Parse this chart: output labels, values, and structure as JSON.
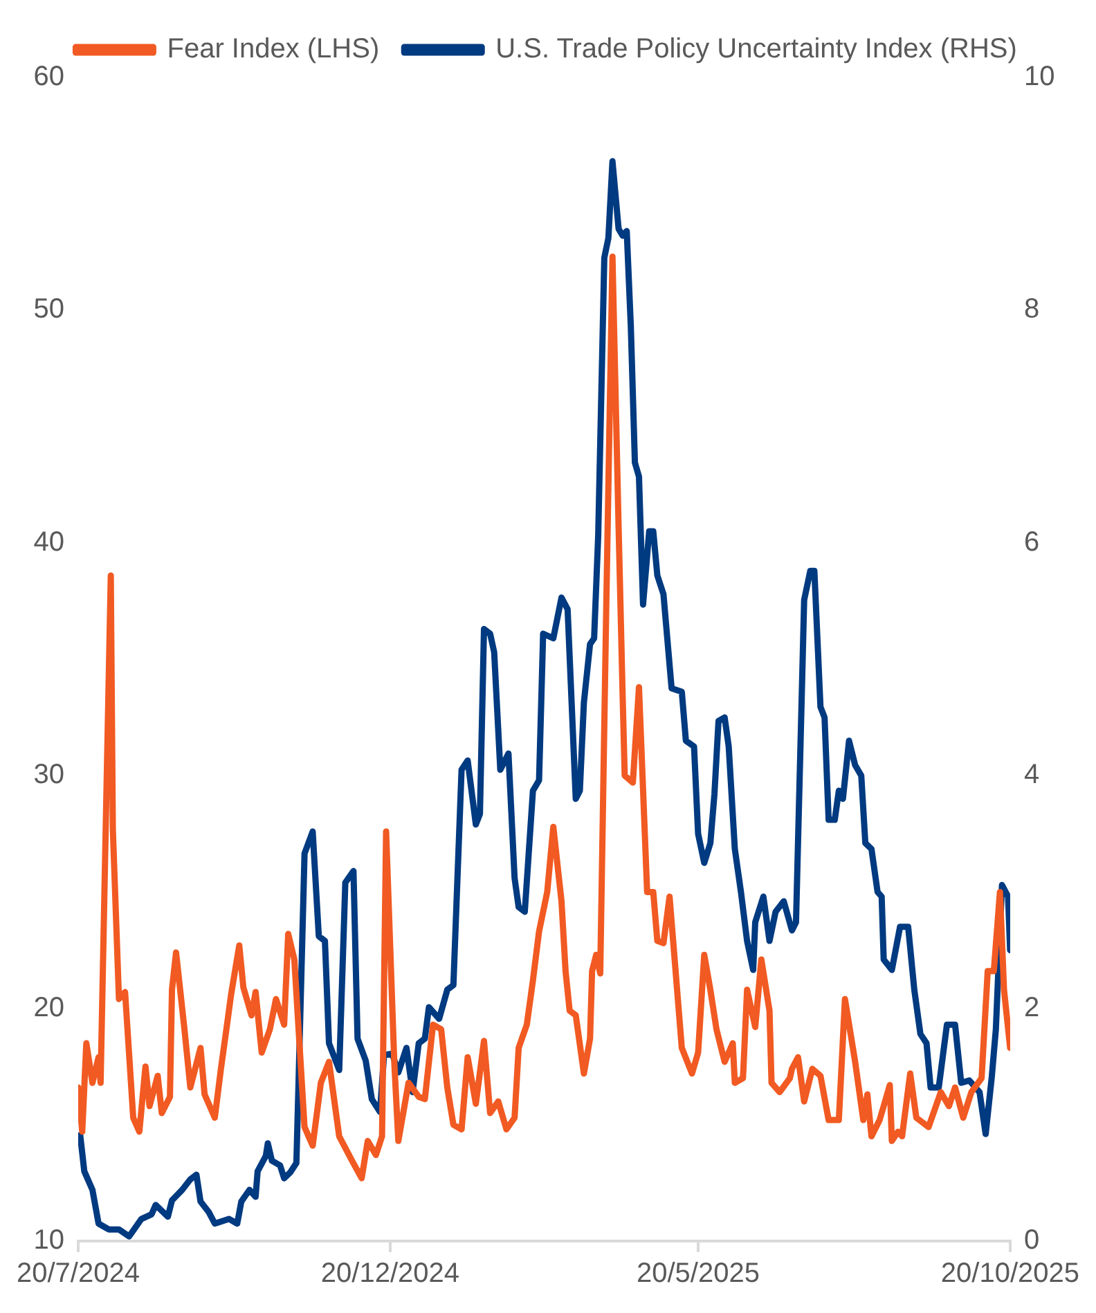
{
  "chart_data": {
    "type": "line",
    "legend": "top",
    "grid": false,
    "xlim": [
      "2024-07-20",
      "2025-10-20"
    ],
    "xticks": [
      {
        "value": "2024-07-20",
        "label": "20/7/2024"
      },
      {
        "value": "2024-12-20",
        "label": "20/12/2024"
      },
      {
        "value": "2025-05-20",
        "label": "20/5/2025"
      },
      {
        "value": "2025-10-20",
        "label": "20/10/2025"
      }
    ],
    "ylim": [
      10,
      60
    ],
    "yticks": [
      10,
      20,
      30,
      40,
      50,
      60
    ],
    "y2lim": [
      0,
      10
    ],
    "y2ticks": [
      0,
      2,
      4,
      6,
      8,
      10
    ],
    "series": [
      {
        "name": "Fear Index (LHS)",
        "color": "#f15a22",
        "axis": "y",
        "x": [
          "2024-07-20",
          "2024-07-22",
          "2024-07-24",
          "2024-07-27",
          "2024-07-30",
          "2024-07-31",
          "2024-08-05",
          "2024-08-06",
          "2024-08-09",
          "2024-08-12",
          "2024-08-16",
          "2024-08-19",
          "2024-08-22",
          "2024-08-24",
          "2024-08-28",
          "2024-08-30",
          "2024-09-03",
          "2024-09-04",
          "2024-09-06",
          "2024-09-10",
          "2024-09-13",
          "2024-09-18",
          "2024-09-20",
          "2024-09-25",
          "2024-09-28",
          "2024-10-01",
          "2024-10-03",
          "2024-10-07",
          "2024-10-09",
          "2024-10-13",
          "2024-10-15",
          "2024-10-18",
          "2024-10-22",
          "2024-10-25",
          "2024-10-29",
          "2024-10-31",
          "2024-11-03",
          "2024-11-08",
          "2024-11-12",
          "2024-11-16",
          "2024-11-20",
          "2024-11-25",
          "2024-12-01",
          "2024-12-06",
          "2024-12-09",
          "2024-12-13",
          "2024-12-16",
          "2024-12-18",
          "2024-12-22",
          "2024-12-24",
          "2024-12-29",
          "2025-01-03",
          "2025-01-06",
          "2025-01-10",
          "2025-01-14",
          "2025-01-17",
          "2025-01-20",
          "2025-01-24",
          "2025-01-27",
          "2025-01-31",
          "2025-02-04",
          "2025-02-07",
          "2025-02-11",
          "2025-02-15",
          "2025-02-19",
          "2025-02-21",
          "2025-02-25",
          "2025-02-28",
          "2025-03-03",
          "2025-03-07",
          "2025-03-10",
          "2025-03-14",
          "2025-03-16",
          "2025-03-18",
          "2025-03-21",
          "2025-03-25",
          "2025-03-28",
          "2025-03-29",
          "2025-03-31",
          "2025-04-02",
          "2025-04-05",
          "2025-04-08",
          "2025-04-11",
          "2025-04-13",
          "2025-04-14",
          "2025-04-18",
          "2025-04-21",
          "2025-04-25",
          "2025-04-28",
          "2025-04-30",
          "2025-05-03",
          "2025-05-06",
          "2025-05-12",
          "2025-05-17",
          "2025-05-20",
          "2025-05-23",
          "2025-05-26",
          "2025-05-29",
          "2025-06-02",
          "2025-06-06",
          "2025-06-07",
          "2025-06-11",
          "2025-06-13",
          "2025-06-17",
          "2025-06-20",
          "2025-06-24",
          "2025-06-25",
          "2025-06-29",
          "2025-07-04",
          "2025-07-05",
          "2025-07-08",
          "2025-07-11",
          "2025-07-15",
          "2025-07-19",
          "2025-07-23",
          "2025-07-28",
          "2025-07-31",
          "2025-08-05",
          "2025-08-09",
          "2025-08-11",
          "2025-08-13",
          "2025-08-17",
          "2025-08-22",
          "2025-08-23",
          "2025-08-26",
          "2025-08-28",
          "2025-09-01",
          "2025-09-04",
          "2025-09-10",
          "2025-09-16",
          "2025-09-20",
          "2025-09-23",
          "2025-09-27",
          "2025-10-01",
          "2025-10-06",
          "2025-10-09",
          "2025-10-12",
          "2025-10-15",
          "2025-10-17",
          "2025-10-20"
        ],
        "values": [
          16.6,
          14.7,
          18.5,
          16.8,
          17.9,
          16.8,
          38.6,
          27.7,
          20.4,
          20.7,
          15.3,
          14.7,
          17.5,
          15.8,
          17.1,
          15.5,
          16.2,
          20.8,
          22.4,
          19.2,
          16.6,
          18.3,
          16.3,
          15.3,
          17.4,
          19.3,
          20.6,
          22.7,
          20.9,
          19.7,
          20.7,
          18.1,
          19.1,
          20.4,
          19.3,
          23.2,
          22.1,
          14.9,
          14.1,
          16.8,
          17.7,
          14.5,
          13.5,
          12.7,
          14.3,
          13.7,
          14.5,
          27.6,
          17.7,
          14.3,
          16.8,
          16.2,
          16.1,
          19.3,
          19.1,
          16.6,
          15.0,
          14.8,
          17.9,
          15.9,
          18.6,
          15.5,
          16.0,
          14.8,
          15.3,
          18.3,
          19.3,
          21.2,
          23.3,
          25.0,
          27.8,
          24.6,
          21.6,
          19.9,
          19.7,
          17.2,
          18.7,
          21.6,
          22.3,
          21.5,
          37.5,
          52.3,
          40.7,
          33.4,
          30.0,
          29.7,
          33.8,
          25.0,
          25.0,
          22.9,
          22.8,
          24.8,
          18.3,
          17.2,
          18.1,
          22.3,
          20.8,
          19.1,
          17.7,
          18.5,
          16.8,
          17.0,
          20.8,
          19.2,
          22.1,
          19.9,
          16.8,
          16.4,
          17.0,
          17.4,
          17.9,
          16.0,
          17.4,
          17.1,
          15.2,
          15.2,
          20.4,
          17.7,
          15.2,
          16.3,
          14.5,
          15.2,
          16.7,
          14.3,
          14.7,
          14.5,
          17.2,
          15.3,
          14.9,
          16.4,
          15.8,
          16.6,
          15.3,
          16.4,
          17.0,
          21.6,
          21.6,
          25.0,
          20.8,
          18.3
        ]
      },
      {
        "name": "U.S. Trade Policy Uncertainty Index (RHS)",
        "color": "#003a80",
        "axis": "y2",
        "x": [
          "2024-07-21",
          "2024-07-23",
          "2024-07-27",
          "2024-07-30",
          "2024-08-04",
          "2024-08-09",
          "2024-08-14",
          "2024-08-20",
          "2024-08-25",
          "2024-08-27",
          "2024-09-02",
          "2024-09-04",
          "2024-09-09",
          "2024-09-13",
          "2024-09-16",
          "2024-09-18",
          "2024-09-22",
          "2024-09-25",
          "2024-10-02",
          "2024-10-06",
          "2024-10-08",
          "2024-10-12",
          "2024-10-15",
          "2024-10-16",
          "2024-10-20",
          "2024-10-21",
          "2024-10-23",
          "2024-10-27",
          "2024-10-29",
          "2024-11-01",
          "2024-11-04",
          "2024-11-05",
          "2024-11-08",
          "2024-11-12",
          "2024-11-15",
          "2024-11-18",
          "2024-11-20",
          "2024-11-25",
          "2024-11-28",
          "2024-12-02",
          "2024-12-04",
          "2024-12-08",
          "2024-12-11",
          "2024-12-15",
          "2024-12-17",
          "2024-12-21",
          "2024-12-24",
          "2024-12-28",
          "2024-12-31",
          "2025-01-03",
          "2025-01-06",
          "2025-01-08",
          "2025-01-13",
          "2025-01-17",
          "2025-01-20",
          "2025-01-24",
          "2025-01-27",
          "2025-01-31",
          "2025-02-02",
          "2025-02-04",
          "2025-02-07",
          "2025-02-09",
          "2025-02-12",
          "2025-02-16",
          "2025-02-19",
          "2025-02-21",
          "2025-02-24",
          "2025-02-28",
          "2025-03-03",
          "2025-03-05",
          "2025-03-10",
          "2025-03-14",
          "2025-03-17",
          "2025-03-21",
          "2025-03-23",
          "2025-03-25",
          "2025-03-28",
          "2025-03-30",
          "2025-04-01",
          "2025-04-04",
          "2025-04-06",
          "2025-04-08",
          "2025-04-11",
          "2025-04-13",
          "2025-04-15",
          "2025-04-17",
          "2025-04-19",
          "2025-04-21",
          "2025-04-23",
          "2025-04-26",
          "2025-04-28",
          "2025-04-30",
          "2025-05-03",
          "2025-05-07",
          "2025-05-12",
          "2025-05-14",
          "2025-05-18",
          "2025-05-20",
          "2025-05-23",
          "2025-05-26",
          "2025-05-28",
          "2025-05-30",
          "2025-06-02",
          "2025-06-04",
          "2025-06-07",
          "2025-06-10",
          "2025-06-13",
          "2025-06-16",
          "2025-06-17",
          "2025-06-21",
          "2025-06-24",
          "2025-06-27",
          "2025-07-01",
          "2025-07-05",
          "2025-07-07",
          "2025-07-11",
          "2025-07-14",
          "2025-07-16",
          "2025-07-19",
          "2025-07-21",
          "2025-07-23",
          "2025-07-26",
          "2025-07-28",
          "2025-07-30",
          "2025-08-02",
          "2025-08-05",
          "2025-08-08",
          "2025-08-10",
          "2025-08-13",
          "2025-08-16",
          "2025-08-18",
          "2025-08-19",
          "2025-08-23",
          "2025-08-27",
          "2025-08-31",
          "2025-09-03",
          "2025-09-06",
          "2025-09-09",
          "2025-09-11",
          "2025-09-15",
          "2025-09-19",
          "2025-09-23",
          "2025-09-26",
          "2025-09-30",
          "2025-10-05",
          "2025-10-08",
          "2025-10-11",
          "2025-10-13",
          "2025-10-16",
          "2025-10-19",
          "2025-10-20"
        ],
        "values": [
          0.91,
          0.6,
          0.44,
          0.15,
          0.1,
          0.1,
          0.04,
          0.19,
          0.23,
          0.31,
          0.21,
          0.35,
          0.44,
          0.53,
          0.57,
          0.34,
          0.25,
          0.15,
          0.19,
          0.15,
          0.34,
          0.44,
          0.38,
          0.6,
          0.73,
          0.84,
          0.69,
          0.65,
          0.54,
          0.59,
          0.67,
          1.32,
          3.33,
          3.52,
          2.62,
          2.58,
          1.7,
          1.47,
          3.08,
          3.18,
          1.74,
          1.55,
          1.22,
          1.11,
          1.6,
          1.61,
          1.45,
          1.66,
          1.28,
          1.7,
          1.74,
          2.01,
          1.91,
          2.16,
          2.2,
          4.05,
          4.13,
          3.58,
          3.67,
          5.26,
          5.22,
          5.06,
          4.05,
          4.19,
          3.12,
          2.87,
          2.83,
          3.87,
          3.96,
          5.22,
          5.18,
          5.53,
          5.43,
          3.8,
          3.87,
          4.63,
          5.13,
          5.18,
          6.06,
          8.45,
          8.62,
          9.28,
          8.7,
          8.64,
          8.68,
          7.86,
          6.69,
          6.57,
          5.47,
          6.1,
          6.1,
          5.72,
          5.56,
          4.75,
          4.72,
          4.3,
          4.25,
          3.5,
          3.25,
          3.42,
          3.84,
          4.47,
          4.5,
          4.25,
          3.37,
          3.0,
          2.58,
          2.33,
          2.74,
          2.96,
          2.58,
          2.83,
          2.92,
          2.67,
          2.74,
          5.51,
          5.76,
          5.76,
          4.59,
          4.5,
          3.62,
          3.62,
          3.87,
          3.8,
          4.3,
          4.09,
          4.0,
          3.42,
          3.37,
          3.0,
          2.96,
          2.42,
          2.33,
          2.7,
          2.7,
          2.16,
          1.78,
          1.7,
          1.32,
          1.32,
          1.86,
          1.86,
          1.36,
          1.38,
          1.28,
          0.92,
          1.41,
          1.82,
          3.06,
          2.96,
          2.5
        ]
      }
    ]
  }
}
